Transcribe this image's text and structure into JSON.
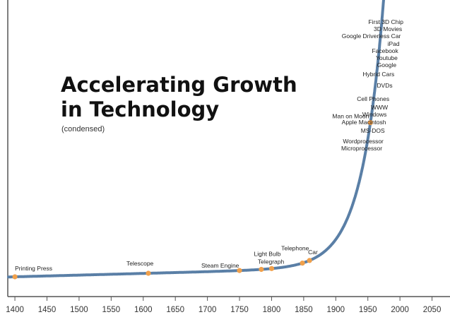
{
  "chart_data": {
    "type": "line",
    "title": "Accelerating Growth",
    "title_line2": "in Technology",
    "subtitle": "(condensed)",
    "xlabel": "",
    "ylabel": "",
    "xlim": [
      1390,
      2078
    ],
    "x_ticks": [
      1400,
      1450,
      1500,
      1550,
      1600,
      1650,
      1700,
      1750,
      1800,
      1850,
      1900,
      1950,
      2000,
      2050
    ],
    "grid": false,
    "colors": {
      "curve": "#5a7fa6",
      "marker": "#f0a04b",
      "axis": "#555555"
    },
    "events": [
      {
        "label": "Printing Press",
        "x": 1400
      },
      {
        "label": "Telescope",
        "x": 1608
      },
      {
        "label": "Steam Engine",
        "x": 1750
      },
      {
        "label": "Telegraph",
        "x": 1784
      },
      {
        "label": "Light Bulb",
        "x": 1800
      },
      {
        "label": "Telephone",
        "x": 1848
      },
      {
        "label": "Car",
        "x": 1859
      },
      {
        "label": "Man on Moon",
        "x": 1954
      },
      {
        "label": "Microprocessor",
        "x": 1979
      },
      {
        "label": "Wordprocessor",
        "x": 1981
      },
      {
        "label": "MS-DOS",
        "x": 1983
      },
      {
        "label": "Apple Macintosh",
        "x": 1985
      },
      {
        "label": "Windows",
        "x": 1986
      },
      {
        "label": "WWW",
        "x": 1988
      },
      {
        "label": "Cell Phones",
        "x": 1990
      },
      {
        "label": "DVDs",
        "x": 1995
      },
      {
        "label": "Hybrid Cars",
        "x": 1998
      },
      {
        "label": "Google",
        "x": 2001
      },
      {
        "label": "Youtube",
        "x": 2003
      },
      {
        "label": "Facebook",
        "x": 2004
      },
      {
        "label": "iPad",
        "x": 2006
      },
      {
        "label": "Google Driverless Car",
        "x": 2008
      },
      {
        "label": "3D Movies",
        "x": 2010
      },
      {
        "label": "First 3D Chip",
        "x": 2012
      }
    ]
  }
}
